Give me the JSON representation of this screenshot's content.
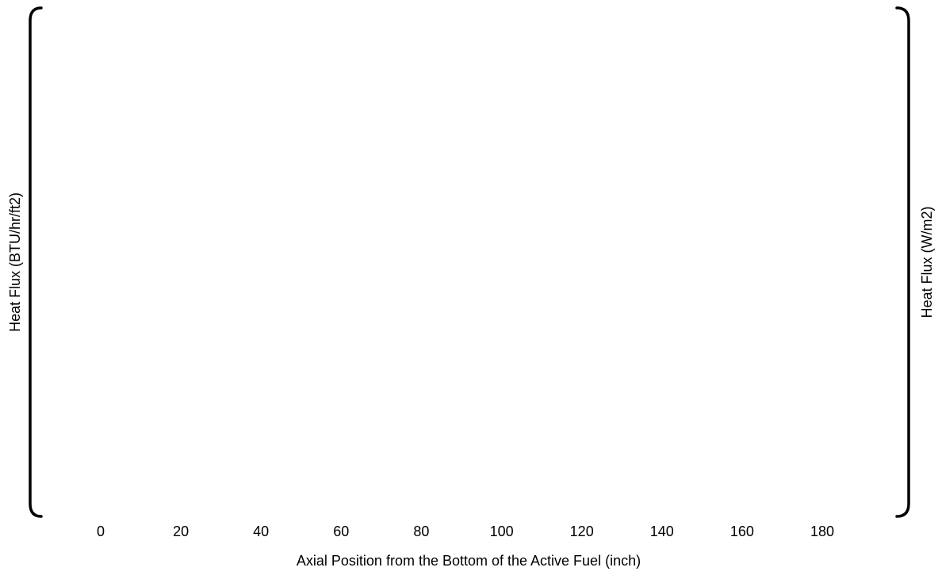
{
  "chart_data": {
    "type": "line",
    "title": "",
    "xlabel": "Axial Position from the Bottom of the Active Fuel (inch)",
    "ylabel": "Heat Flux (BTU/hr/ft2)",
    "y2label": "Heat Flux (W/m2)",
    "x_ticks": [
      "0",
      "20",
      "40",
      "60",
      "80",
      "100",
      "120",
      "140",
      "160",
      "180"
    ],
    "xlim": [
      0,
      180
    ],
    "grid": false,
    "series": []
  }
}
